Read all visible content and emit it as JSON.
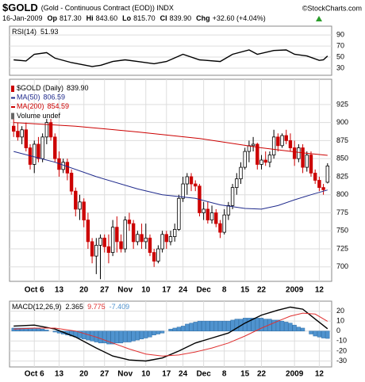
{
  "header": {
    "symbol": "$GOLD",
    "description": "(Gold - Continuous Contract (EOD)) INDX",
    "source": "©StockCharts.com",
    "date": "16-Jan-2009",
    "quote": [
      {
        "label": "Op",
        "value": "817.30"
      },
      {
        "label": "Hi",
        "value": "843.60"
      },
      {
        "label": "Lo",
        "value": "815.70"
      },
      {
        "label": "Cl",
        "value": "839.90"
      },
      {
        "label": "Chg",
        "value": "+32.60 (+4.04%)"
      }
    ]
  },
  "chart_data": [
    {
      "type": "line",
      "ylim": [
        17,
        106
      ],
      "yticks": [
        90,
        70,
        50,
        30
      ],
      "xlim": [
        -1,
        77
      ],
      "series": [
        {
          "name": "RSI(14)",
          "color": "#000000",
          "x": [
            0,
            3,
            5,
            8,
            10,
            14,
            19,
            21,
            24,
            27,
            30,
            34,
            37,
            41,
            45,
            50,
            53,
            57,
            59,
            63,
            66,
            68,
            71,
            74,
            75,
            76
          ],
          "values": [
            45,
            43,
            55,
            58,
            48,
            40,
            33,
            35,
            42,
            45,
            42,
            38,
            42,
            55,
            45,
            42,
            55,
            63,
            55,
            62,
            63,
            55,
            52,
            44,
            45,
            51.93
          ]
        }
      ]
    },
    {
      "type": "candlestick",
      "ylim": [
        680,
        960
      ],
      "yticks": [
        925,
        900,
        875,
        850,
        825,
        800,
        775,
        750,
        725,
        700
      ],
      "xlim": [
        -1,
        77
      ],
      "xticks": [
        {
          "value": 5,
          "label": "Oct 6"
        },
        {
          "value": 11,
          "label": "13"
        },
        {
          "value": 17,
          "label": "20"
        },
        {
          "value": 22,
          "label": "27"
        },
        {
          "value": 27,
          "label": "Nov"
        },
        {
          "value": 32,
          "label": "10"
        },
        {
          "value": 37,
          "label": "17"
        },
        {
          "value": 41,
          "label": "24"
        },
        {
          "value": 46,
          "label": "Dec"
        },
        {
          "value": 51,
          "label": "8"
        },
        {
          "value": 56,
          "label": "15"
        },
        {
          "value": 60,
          "label": "22"
        },
        {
          "value": 68,
          "label": "2009"
        },
        {
          "value": 74,
          "label": "12"
        }
      ],
      "volume_label": "Volume undef",
      "series": [
        {
          "name": "$GOLD (Daily)",
          "value_label": "839.90",
          "type": "candlestick",
          "up_color": "#000000",
          "down_color": "#cc0000",
          "x": [
            0,
            1,
            2,
            3,
            4,
            5,
            6,
            7,
            8,
            9,
            10,
            11,
            12,
            13,
            14,
            15,
            16,
            17,
            18,
            19,
            20,
            21,
            22,
            23,
            24,
            25,
            26,
            27,
            28,
            29,
            30,
            31,
            32,
            33,
            34,
            35,
            36,
            37,
            38,
            39,
            40,
            41,
            42,
            43,
            44,
            45,
            46,
            47,
            48,
            49,
            50,
            51,
            52,
            53,
            54,
            55,
            56,
            57,
            58,
            59,
            60,
            61,
            62,
            63,
            64,
            65,
            66,
            67,
            68,
            69,
            70,
            71,
            72,
            73,
            74,
            75,
            76
          ],
          "open": [
            895,
            888,
            880,
            890,
            865,
            842,
            870,
            850,
            880,
            900,
            880,
            850,
            835,
            845,
            830,
            805,
            780,
            790,
            765,
            735,
            715,
            730,
            740,
            728,
            720,
            755,
            735,
            725,
            765,
            760,
            735,
            745,
            735,
            740,
            720,
            708,
            725,
            745,
            735,
            742,
            752,
            795,
            815,
            825,
            815,
            812,
            775,
            780,
            765,
            775,
            760,
            748,
            772,
            785,
            810,
            822,
            838,
            860,
            868,
            870,
            842,
            848,
            845,
            855,
            880,
            868,
            882,
            875,
            865,
            850,
            865,
            838,
            855,
            830,
            820,
            810,
            817.3
          ],
          "high": [
            905,
            900,
            895,
            900,
            870,
            875,
            880,
            885,
            905,
            905,
            885,
            860,
            850,
            850,
            835,
            810,
            800,
            795,
            775,
            740,
            740,
            745,
            745,
            745,
            765,
            770,
            745,
            770,
            775,
            765,
            750,
            760,
            760,
            745,
            725,
            730,
            750,
            750,
            750,
            760,
            800,
            825,
            830,
            830,
            820,
            815,
            790,
            790,
            785,
            780,
            765,
            780,
            790,
            815,
            830,
            845,
            865,
            875,
            880,
            872,
            855,
            860,
            860,
            890,
            885,
            885,
            890,
            885,
            875,
            870,
            870,
            860,
            860,
            835,
            825,
            815,
            843.6
          ],
          "low": [
            880,
            875,
            870,
            860,
            835,
            830,
            845,
            845,
            870,
            875,
            845,
            825,
            830,
            820,
            800,
            770,
            765,
            755,
            725,
            705,
            690,
            683,
            720,
            705,
            715,
            720,
            720,
            720,
            750,
            725,
            730,
            725,
            725,
            715,
            700,
            705,
            720,
            725,
            730,
            735,
            750,
            790,
            800,
            805,
            805,
            770,
            765,
            760,
            760,
            755,
            740,
            745,
            765,
            780,
            800,
            815,
            835,
            845,
            860,
            835,
            835,
            840,
            838,
            850,
            860,
            865,
            870,
            860,
            840,
            845,
            830,
            832,
            825,
            815,
            805,
            800,
            815.7
          ],
          "close": [
            888,
            880,
            890,
            865,
            842,
            870,
            850,
            880,
            900,
            880,
            850,
            835,
            845,
            830,
            805,
            780,
            790,
            765,
            735,
            715,
            730,
            740,
            728,
            720,
            755,
            735,
            725,
            765,
            760,
            735,
            745,
            735,
            740,
            720,
            708,
            725,
            745,
            735,
            742,
            752,
            795,
            815,
            825,
            815,
            812,
            775,
            780,
            765,
            775,
            760,
            748,
            772,
            785,
            810,
            822,
            838,
            860,
            868,
            870,
            842,
            848,
            845,
            855,
            880,
            868,
            882,
            875,
            865,
            850,
            865,
            838,
            855,
            830,
            820,
            810,
            807,
            839.9
          ]
        },
        {
          "name": "MA(50)",
          "type": "line",
          "color": "#1f2a8c",
          "x": [
            0,
            10,
            20,
            30,
            36,
            44,
            50,
            56,
            60,
            64,
            68,
            72,
            76
          ],
          "values": [
            860,
            845,
            825,
            808,
            800,
            795,
            786,
            781,
            780,
            785,
            793,
            800,
            806.59
          ]
        },
        {
          "name": "MA(200)",
          "type": "line",
          "color": "#cc0000",
          "x": [
            0,
            15,
            30,
            45,
            60,
            70,
            76
          ],
          "values": [
            900,
            895,
            887,
            878,
            865,
            858,
            854.59
          ]
        }
      ]
    },
    {
      "type": "combo",
      "ylim": [
        -36,
        30
      ],
      "yticks": [
        20,
        10,
        0,
        -10,
        -20,
        -30
      ],
      "xlim": [
        -1,
        77
      ],
      "xticks": [
        {
          "value": 5,
          "label": "Oct 6"
        },
        {
          "value": 11,
          "label": "13"
        },
        {
          "value": 17,
          "label": "20"
        },
        {
          "value": 22,
          "label": "27"
        },
        {
          "value": 27,
          "label": "Nov"
        },
        {
          "value": 32,
          "label": "10"
        },
        {
          "value": 37,
          "label": "17"
        },
        {
          "value": 41,
          "label": "24"
        },
        {
          "value": 46,
          "label": "Dec"
        },
        {
          "value": 51,
          "label": "8"
        },
        {
          "value": 56,
          "label": "15"
        },
        {
          "value": 60,
          "label": "22"
        },
        {
          "value": 68,
          "label": "2009"
        },
        {
          "value": 74,
          "label": "12"
        }
      ],
      "series": [
        {
          "type": "bar",
          "color": "#4f93cf",
          "x": [
            0,
            1,
            2,
            3,
            4,
            5,
            6,
            7,
            8,
            9,
            10,
            11,
            12,
            13,
            14,
            15,
            16,
            17,
            18,
            19,
            20,
            21,
            22,
            23,
            24,
            25,
            26,
            27,
            28,
            29,
            30,
            31,
            32,
            33,
            34,
            35,
            36,
            37,
            38,
            39,
            40,
            41,
            42,
            43,
            44,
            45,
            46,
            47,
            48,
            49,
            50,
            51,
            52,
            53,
            54,
            55,
            56,
            57,
            58,
            59,
            60,
            61,
            62,
            63,
            64,
            65,
            66,
            67,
            68,
            69,
            70,
            71,
            72,
            73,
            74,
            75,
            76
          ],
          "values": [
            3,
            3,
            3,
            3,
            3,
            3,
            3,
            2,
            1,
            0,
            -1,
            -2,
            -3,
            -4,
            -5,
            -6,
            -7,
            -8,
            -9,
            -10,
            -11,
            -12,
            -12,
            -13,
            -13,
            -12,
            -12,
            -11,
            -11,
            -10,
            -9,
            -8,
            -7,
            -6,
            -4,
            -3,
            -2,
            0,
            2,
            3,
            4,
            5,
            7,
            8,
            9,
            10,
            10,
            10,
            10,
            10,
            10,
            10,
            10,
            11,
            12,
            12,
            13,
            13,
            13,
            13,
            13,
            12,
            12,
            11,
            11,
            10,
            9,
            8,
            6,
            4,
            3,
            0,
            -3,
            -5,
            -6,
            -7,
            -7.409
          ]
        },
        {
          "name": "MACD(12,26,9)",
          "type": "line",
          "color": "#000000",
          "x": [
            0,
            5,
            10,
            15,
            20,
            24,
            28,
            32,
            36,
            40,
            44,
            48,
            52,
            56,
            60,
            64,
            67,
            70,
            73,
            76
          ],
          "values": [
            5,
            6,
            2,
            -6,
            -17,
            -25,
            -29,
            -30,
            -27,
            -20,
            -12,
            -7,
            -2,
            8,
            16,
            21,
            24,
            22,
            12,
            2.365
          ]
        },
        {
          "type": "line",
          "color": "#e03030",
          "x": [
            0,
            5,
            10,
            15,
            20,
            24,
            28,
            32,
            36,
            40,
            44,
            48,
            52,
            56,
            60,
            64,
            67,
            70,
            73,
            76
          ],
          "values": [
            2,
            3,
            3,
            0,
            -6,
            -12,
            -18,
            -23,
            -25,
            -24,
            -21,
            -17,
            -12,
            -5,
            3,
            10,
            15,
            18,
            17,
            9.775
          ]
        }
      ]
    }
  ]
}
